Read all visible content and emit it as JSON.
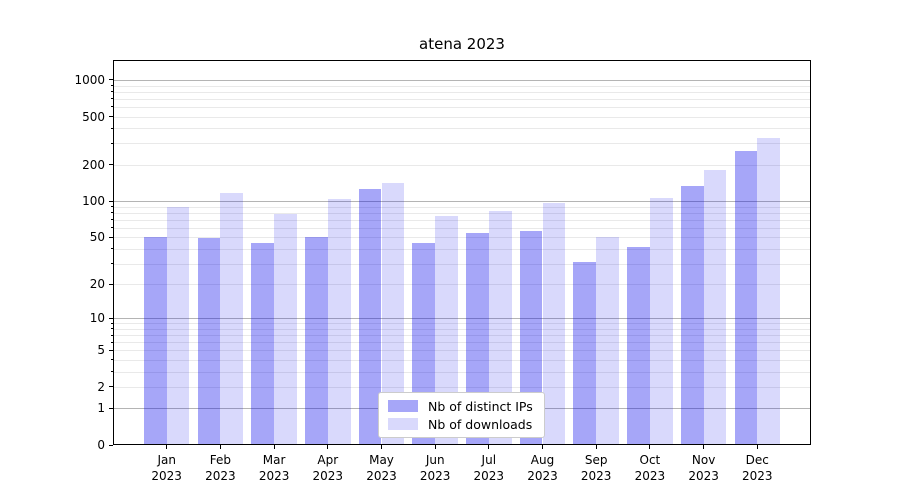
{
  "chart_data": {
    "type": "bar",
    "title": "atena 2023",
    "x_axis": {
      "months": [
        "Jan",
        "Feb",
        "Mar",
        "Apr",
        "May",
        "Jun",
        "Jul",
        "Aug",
        "Sep",
        "Oct",
        "Nov",
        "Dec"
      ],
      "year": "2023"
    },
    "y_axis": {
      "scale": "log1p",
      "ticks": [
        1000,
        500,
        200,
        100,
        50,
        20,
        10,
        5,
        2,
        1,
        0
      ],
      "top_value": 1450
    },
    "series": [
      {
        "name": "Nb of distinct IPs",
        "color": "rgba(0,0,235,0.35)",
        "solid_color": "#a6a6f8",
        "values": [
          50,
          49,
          45,
          50,
          125,
          45,
          54,
          56,
          31,
          41,
          134,
          262
        ]
      },
      {
        "name": "Nb of downloads",
        "color": "rgba(0,0,235,0.15)",
        "solid_color": "#d9d9fc",
        "values": [
          90,
          117,
          78,
          105,
          141,
          75,
          82,
          96,
          50,
          107,
          182,
          330
        ]
      }
    ],
    "grid": {
      "major_color": "#b4b4b4",
      "minor_color": "#e9e9e9",
      "vertical": false
    },
    "legend": {
      "position": "lower center"
    }
  }
}
